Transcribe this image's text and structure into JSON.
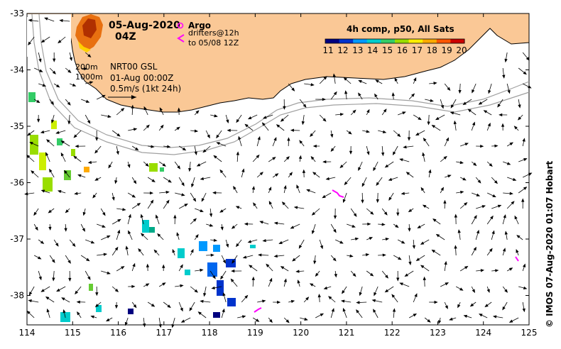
{
  "title": {
    "date": "05-Aug-2020",
    "time": "04Z"
  },
  "legend_argo": {
    "argo_label": "Argo",
    "drifters_label": "drifters@12h",
    "drifters_to": "to 05/08 12Z",
    "argo_color": "#ff00ff",
    "drifter_color": "#ff00ff"
  },
  "contours": {
    "label_200": "200m",
    "label_1000": "1000m"
  },
  "product": {
    "name": "NRT00 GSL",
    "date": "01-Aug 00:00Z",
    "scale_label": "0.5m/s (1kt 24h)"
  },
  "colorbar": {
    "title": "4h comp, p50, All Sats",
    "ticks": [
      "11",
      "12",
      "13",
      "14",
      "15",
      "16",
      "17",
      "18",
      "19",
      "20"
    ],
    "colors": [
      "#00007f",
      "#0033cc",
      "#0099ff",
      "#00cccc",
      "#33cc66",
      "#99dd00",
      "#ffee00",
      "#ffaa00",
      "#ff5500",
      "#cc0000"
    ]
  },
  "axes": {
    "x_ticks": [
      "114",
      "115",
      "116",
      "117",
      "118",
      "119",
      "120",
      "121",
      "122",
      "123",
      "124",
      "125"
    ],
    "y_ticks": [
      "-33",
      "-34",
      "-35",
      "-36",
      "-37",
      "-38"
    ],
    "xlim": [
      114,
      125
    ],
    "ylim": [
      -38.5,
      -33
    ]
  },
  "credit": "© IMOS 07-Aug-2020 01:07 Hobart",
  "colors": {
    "land": "#fac896",
    "arrow": "#000000",
    "contour": "#a0a0a0"
  }
}
